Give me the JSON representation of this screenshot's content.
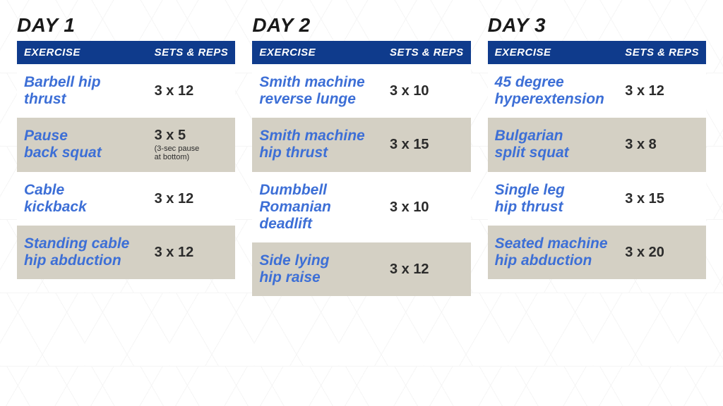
{
  "colors": {
    "header_bg": "#0f3b8c",
    "header_text": "#ffffff",
    "day_title": "#1a1a1a",
    "exercise_text": "#3d6fd6",
    "sets_text": "#2b2b2b",
    "row_alt_bg": "#d4d0c4",
    "row_bg": "#ffffff"
  },
  "header": {
    "exercise": "EXERCISE",
    "sets": "SETS & REPS"
  },
  "days": [
    {
      "title": "DAY 1",
      "rows": [
        {
          "exercise": "Barbell hip\nthrust",
          "sets": "3 x 12",
          "note": ""
        },
        {
          "exercise": "Pause\nback squat",
          "sets": "3 x 5",
          "note": "(3-sec pause\nat bottom)"
        },
        {
          "exercise": "Cable\nkickback",
          "sets": "3 x 12",
          "note": ""
        },
        {
          "exercise": "Standing cable\nhip abduction",
          "sets": "3 x 12",
          "note": ""
        }
      ]
    },
    {
      "title": "DAY 2",
      "rows": [
        {
          "exercise": "Smith machine\nreverse lunge",
          "sets": "3 x 10",
          "note": ""
        },
        {
          "exercise": "Smith machine\nhip thrust",
          "sets": "3 x 15",
          "note": ""
        },
        {
          "exercise": "Dumbbell\nRomanian\ndeadlift",
          "sets": "3 x 10",
          "note": ""
        },
        {
          "exercise": "Side lying\nhip raise",
          "sets": "3 x 12",
          "note": ""
        }
      ]
    },
    {
      "title": "DAY 3",
      "rows": [
        {
          "exercise": "45 degree\nhyperextension",
          "sets": "3 x 12",
          "note": ""
        },
        {
          "exercise": "Bulgarian\nsplit squat",
          "sets": "3 x 8",
          "note": ""
        },
        {
          "exercise": "Single leg\nhip thrust",
          "sets": "3 x 15",
          "note": ""
        },
        {
          "exercise": "Seated machine\nhip abduction",
          "sets": "3 x 20",
          "note": ""
        }
      ]
    }
  ]
}
